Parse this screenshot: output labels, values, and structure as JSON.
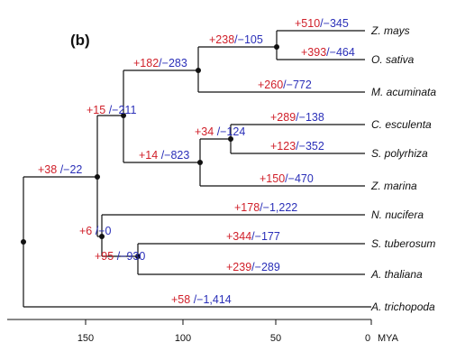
{
  "panel_label": "(b)",
  "axis": {
    "ticks": [
      "150",
      "100",
      "50",
      "0"
    ],
    "unit": "MYA"
  },
  "colors": {
    "gain": "#d0202a",
    "loss": "#2a2fb8",
    "branch": "#111111"
  },
  "taxa": {
    "z_mays": "Z. mays",
    "o_sativa": "O. sativa",
    "m_acuminata": "M. acuminata",
    "c_esculenta": "C. esculenta",
    "s_polyrhiza": "S. polyrhiza",
    "z_marina": "Z. marina",
    "n_nucifera": "N. nucifera",
    "s_tuberosum": "S. tuberosum",
    "a_thaliana": "A. thaliana",
    "a_trichopoda": "A. trichopoda"
  },
  "branch_labels": {
    "z_mays": {
      "gain": "+510",
      "sep": "/",
      "loss": "−345"
    },
    "o_sativa": {
      "gain": "+393",
      "sep": "/",
      "loss": "−464"
    },
    "grasses": {
      "gain": "+238",
      "sep": "/",
      "loss": "−105"
    },
    "m_acuminata": {
      "gain": "+260",
      "sep": "/",
      "loss": "−772"
    },
    "commelinids": {
      "gain": "+182",
      "sep": "/",
      "loss": "−283"
    },
    "c_esculenta": {
      "gain": "+289",
      "sep": "/",
      "loss": "−138"
    },
    "s_polyrhiza": {
      "gain": "+123",
      "sep": "/",
      "loss": "−352"
    },
    "araceae": {
      "gain": "+34",
      "sep": " /",
      "loss": "−124"
    },
    "z_marina": {
      "gain": "+150",
      "sep": "/",
      "loss": "−470"
    },
    "alismatales": {
      "gain": "+14",
      "sep": " /",
      "loss": "−823"
    },
    "monocots": {
      "gain": "+15",
      "sep": " /",
      "loss": "−211"
    },
    "mesangio": {
      "gain": "+38",
      "sep": " /",
      "loss": "−22"
    },
    "n_nucifera": {
      "gain": "+178",
      "sep": "/",
      "loss": "−1,222"
    },
    "eudicots": {
      "gain": "+6",
      "sep": " /",
      "loss": "−0"
    },
    "s_tuberosum": {
      "gain": "+344",
      "sep": "/",
      "loss": "−177"
    },
    "core_eudicots": {
      "gain": "+95",
      "sep": " /",
      "loss": "−930"
    },
    "a_thaliana": {
      "gain": "+239",
      "sep": "/",
      "loss": "−289"
    },
    "a_trichopoda": {
      "gain": "+58",
      "sep": " /",
      "loss": "−1,414"
    }
  }
}
